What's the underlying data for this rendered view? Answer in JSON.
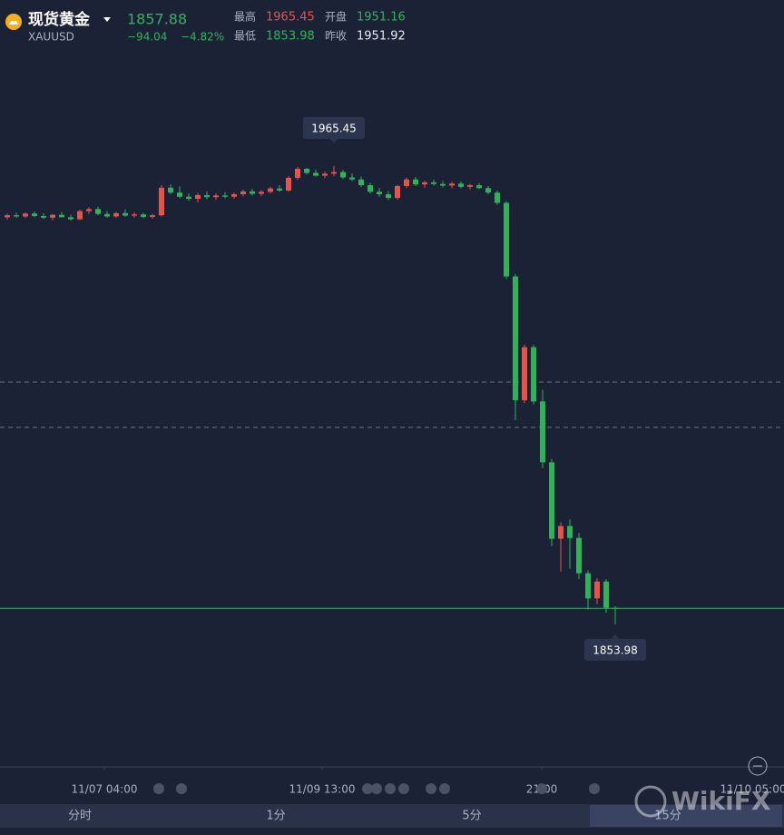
{
  "header": {
    "name": "现货黄金",
    "symbol": "XAUUSD",
    "price": 1857.88,
    "price_color": "#2fb35a",
    "change": "−94.04",
    "change_pct": "−4.82%",
    "stats": [
      {
        "label": "最高",
        "value": 1965.45,
        "color": "#e5534b"
      },
      {
        "label": "开盘",
        "value": 1951.16,
        "color": "#2fb35a"
      },
      {
        "label": "最低",
        "value": 1853.98,
        "color": "#2fb35a"
      },
      {
        "label": "昨收",
        "value": 1951.92,
        "color": "#e6e9ef"
      }
    ]
  },
  "chart_data": {
    "type": "candlestick",
    "up_color": "#e5534b",
    "down_color": "#2fb35a",
    "open": [
      1953.0,
      1953.5,
      1953.2,
      1953.9,
      1953.3,
      1952.9,
      1953.6,
      1953.0,
      1952.5,
      1954.5,
      1955.0,
      1953.8,
      1953.2,
      1954.0,
      1953.4,
      1953.7,
      1953.1,
      1953.5,
      1960.2,
      1959.0,
      1958.0,
      1957.5,
      1958.4,
      1957.9,
      1958.3,
      1958.0,
      1958.6,
      1959.3,
      1958.7,
      1959.2,
      1960.0,
      1959.5,
      1962.6,
      1964.8,
      1963.8,
      1963.1,
      1963.6,
      1964.0,
      1962.7,
      1962.2,
      1960.8,
      1959.2,
      1958.6,
      1957.7,
      1960.6,
      1962.2,
      1961.0,
      1961.5,
      1961.1,
      1960.7,
      1961.2,
      1960.4,
      1960.8,
      1960.1,
      1959.0,
      1956.5,
      1938.6,
      1908.5,
      1921.4,
      1908.2,
      1893.4,
      1874.8,
      1877.9,
      1875.0,
      1866.4,
      1860.3,
      1864.4,
      1858.0
    ],
    "high": [
      1953.9,
      1954.1,
      1954.2,
      1954.4,
      1954.0,
      1953.8,
      1954.3,
      1953.6,
      1954.8,
      1955.4,
      1955.6,
      1954.5,
      1954.3,
      1954.9,
      1954.2,
      1954.1,
      1953.8,
      1960.8,
      1961.0,
      1960.5,
      1958.8,
      1958.9,
      1959.3,
      1958.8,
      1959.1,
      1959.0,
      1959.7,
      1959.9,
      1959.6,
      1960.4,
      1960.8,
      1963.0,
      1965.2,
      1965.0,
      1964.6,
      1964.1,
      1965.45,
      1964.5,
      1963.7,
      1962.9,
      1961.4,
      1960.1,
      1959.4,
      1960.9,
      1962.6,
      1962.8,
      1961.9,
      1962.1,
      1961.8,
      1961.6,
      1961.7,
      1961.1,
      1961.3,
      1960.6,
      1959.5,
      1956.9,
      1939.2,
      1922.0,
      1922.0,
      1911.0,
      1894.2,
      1878.8,
      1879.5,
      1876.2,
      1867.1,
      1865.2,
      1865.0,
      1858.4
    ],
    "low": [
      1952.4,
      1952.9,
      1952.8,
      1953.0,
      1952.6,
      1952.3,
      1953.1,
      1952.2,
      1952.3,
      1953.8,
      1953.5,
      1952.9,
      1952.8,
      1953.1,
      1952.9,
      1952.8,
      1952.7,
      1953.2,
      1958.6,
      1957.6,
      1957.0,
      1956.6,
      1957.4,
      1957.2,
      1957.6,
      1957.5,
      1958.1,
      1958.3,
      1958.2,
      1958.8,
      1959.2,
      1959.2,
      1962.1,
      1963.4,
      1962.9,
      1962.5,
      1963.0,
      1962.3,
      1961.8,
      1960.4,
      1958.8,
      1958.0,
      1957.2,
      1957.3,
      1960.1,
      1960.6,
      1960.2,
      1960.7,
      1960.3,
      1960.1,
      1960.0,
      1959.8,
      1959.9,
      1958.6,
      1956.0,
      1938.0,
      1903.6,
      1907.8,
      1907.5,
      1892.0,
      1873.0,
      1866.8,
      1867.5,
      1865.0,
      1857.6,
      1858.9,
      1856.8,
      1853.98
    ],
    "close": [
      1953.5,
      1953.2,
      1953.9,
      1953.3,
      1952.9,
      1953.6,
      1953.0,
      1952.5,
      1954.5,
      1955.0,
      1953.8,
      1953.2,
      1954.0,
      1953.4,
      1953.7,
      1953.1,
      1953.5,
      1960.2,
      1959.0,
      1958.0,
      1957.5,
      1958.4,
      1957.9,
      1958.3,
      1958.0,
      1958.6,
      1959.3,
      1958.7,
      1959.2,
      1960.0,
      1959.5,
      1962.6,
      1964.8,
      1963.8,
      1963.1,
      1963.6,
      1964.0,
      1962.7,
      1962.2,
      1960.8,
      1959.2,
      1958.6,
      1957.7,
      1960.6,
      1962.2,
      1961.0,
      1961.5,
      1961.1,
      1960.7,
      1961.2,
      1960.4,
      1960.8,
      1960.1,
      1959.0,
      1956.5,
      1938.6,
      1908.5,
      1921.4,
      1908.2,
      1893.4,
      1874.8,
      1877.9,
      1875.0,
      1866.4,
      1860.3,
      1864.4,
      1858.0,
      1857.88
    ],
    "ylim": [
      1819.3,
      2005.85
    ],
    "xlim": [
      -0.8,
      85.6
    ],
    "xticks": [
      {
        "value": 10.7,
        "label": "11/07 04:00"
      },
      {
        "value": 34.7,
        "label": "11/09 13:00"
      },
      {
        "value": 58.9,
        "label": "21:00"
      },
      {
        "value": 82.2,
        "label": "11/10 05:00"
      }
    ],
    "dashed_levels": [
      1912.9,
      1901.9
    ],
    "annotations": [
      {
        "index": 36,
        "value": 1965.45,
        "position": "above"
      },
      {
        "index": 67,
        "value": 1853.98,
        "position": "below"
      }
    ]
  },
  "tabs": [
    "分时",
    "1分",
    "5分",
    "15分"
  ],
  "active_tab": 3,
  "watermark": "WikiFX"
}
